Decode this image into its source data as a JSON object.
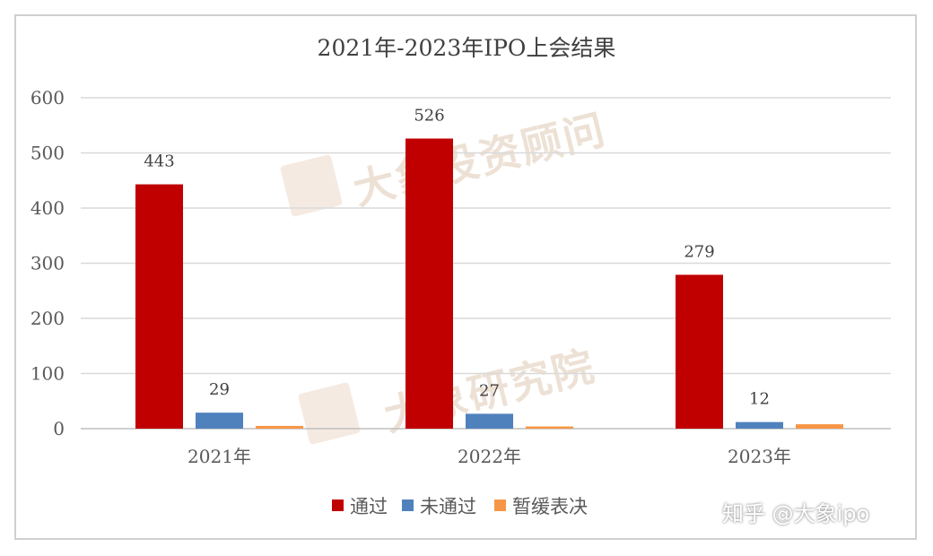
{
  "watermarks": {
    "top": "大象投资顾问",
    "bottom": "大象研究院"
  },
  "credit": "知乎 @大象ipo",
  "chart_data": {
    "type": "bar",
    "title": "2021年-2023年IPO上会结果",
    "categories": [
      "2021年",
      "2022年",
      "2023年"
    ],
    "series": [
      {
        "name": "通过",
        "values": [
          443,
          526,
          279
        ],
        "color": "#c00000"
      },
      {
        "name": "未通过",
        "values": [
          29,
          27,
          12
        ],
        "color": "#4f81bd"
      },
      {
        "name": "暂缓表决",
        "values": [
          5,
          4,
          8
        ],
        "color": "#f79646"
      }
    ],
    "data_labels": [
      [
        "443",
        "526",
        "279"
      ],
      [
        "29",
        "27",
        "12"
      ],
      [
        "",
        "",
        ""
      ]
    ],
    "ylim": [
      0,
      600
    ],
    "yticks": [
      0,
      100,
      200,
      300,
      400,
      500,
      600
    ],
    "grid": true,
    "legend": "bottom",
    "xlabel": "",
    "ylabel": ""
  }
}
